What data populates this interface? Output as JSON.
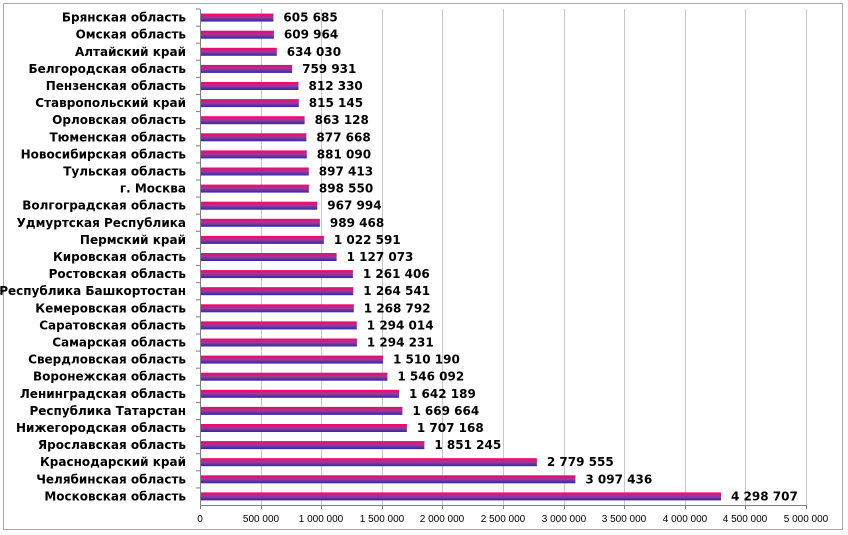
{
  "chart_data": {
    "type": "bar",
    "orientation": "horizontal",
    "categories": [
      "Брянская область",
      "Омская область",
      "Алтайский край",
      "Белгородская область",
      "Пензенская область",
      "Ставропольский край",
      "Орловская область",
      "Тюменская область",
      "Новосибирская область",
      "Тульская область",
      "г. Москва",
      "Волгоградская область",
      "Удмуртская Республика",
      "Пермский край",
      "Кировская область",
      "Ростовская область",
      "Республика Башкортостан",
      "Кемеровская область",
      "Саратовская область",
      "Самарская область",
      "Свердловская область",
      "Воронежская область",
      "Ленинградская область",
      "Республика Татарстан",
      "Нижегородская область",
      "Ярославская область",
      "Краснодарский край",
      "Челябинская область",
      "Московская область"
    ],
    "values": [
      605685,
      609964,
      634030,
      759931,
      812330,
      815145,
      863128,
      877668,
      881090,
      897413,
      898550,
      967994,
      989468,
      1022591,
      1127073,
      1261406,
      1264541,
      1268792,
      1294014,
      1294231,
      1510190,
      1546092,
      1642189,
      1669664,
      1707168,
      1851245,
      2779555,
      3097436,
      4298707
    ],
    "value_labels": [
      "605 685",
      "609 964",
      "634 030",
      "759 931",
      "812 330",
      "815 145",
      "863 128",
      "877 668",
      "881 090",
      "897 413",
      "898 550",
      "967 994",
      "989 468",
      "1 022 591",
      "1 127 073",
      "1 261 406",
      "1 264 541",
      "1 268 792",
      "1 294 014",
      "1 294 231",
      "1 510 190",
      "1 546 092",
      "1 642 189",
      "1 669 664",
      "1 707 168",
      "1 851 245",
      "2 779 555",
      "3 097 436",
      "4 298 707"
    ],
    "x_ticks": [
      0,
      500000,
      1000000,
      1500000,
      2000000,
      2500000,
      3000000,
      3500000,
      4000000,
      4500000,
      5000000
    ],
    "x_tick_labels": [
      "0",
      "500 000",
      "1 000 000",
      "1 500 000",
      "2 000 000",
      "2 500 000",
      "3 000 000",
      "3 500 000",
      "4 000 000",
      "4 500 000",
      "5 000 000"
    ],
    "xlim": [
      0,
      5000000
    ],
    "title": "",
    "xlabel": "",
    "ylabel": "",
    "grid": true,
    "legend": "none",
    "colors": {
      "bar_top": "#ff0066",
      "bar_mid": "#9c3a9c",
      "bar_bottom": "#2a2aa8",
      "plot_background": "#ffffff",
      "grid": "#c8c8c8",
      "axis": "#7f7f7f"
    }
  }
}
